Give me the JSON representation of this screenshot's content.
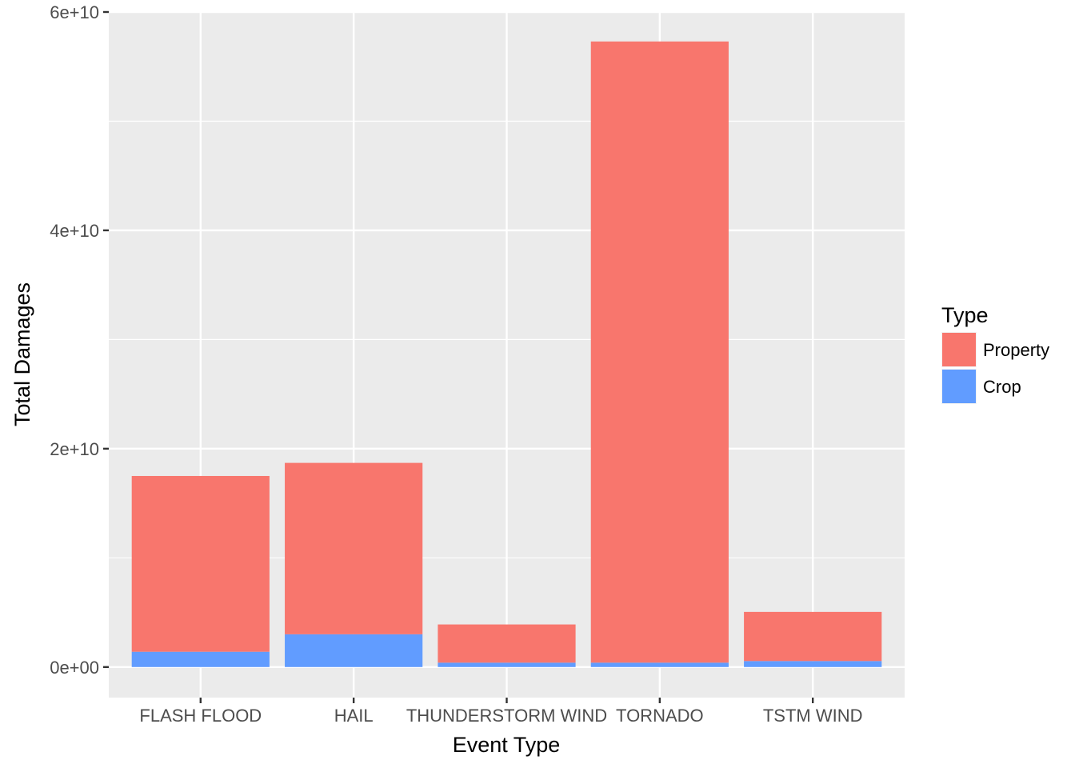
{
  "chart_data": {
    "type": "bar",
    "stacked": true,
    "categories": [
      "FLASH FLOOD",
      "HAIL",
      "THUNDERSTORM WIND",
      "TORNADO",
      "TSTM WIND"
    ],
    "series": [
      {
        "name": "Property",
        "color": "#F8766D",
        "values": [
          16100000000,
          15700000000,
          3500000000,
          56900000000,
          4500000000
        ]
      },
      {
        "name": "Crop",
        "color": "#619CFF",
        "values": [
          1400000000,
          3000000000,
          400000000,
          400000000,
          550000000
        ]
      }
    ],
    "xlabel": "Event Type",
    "ylabel": "Total Damages",
    "ylim": [
      -2800000000,
      60000000000
    ],
    "y_ticks": [
      0,
      20000000000,
      40000000000,
      60000000000
    ],
    "y_tick_labels": [
      "0e+00",
      "2e+10",
      "4e+10",
      "6e+10"
    ],
    "grid": true,
    "panel_background": "#EBEBEB",
    "grid_color": "#FFFFFF",
    "legend": {
      "title": "Type",
      "position": "right",
      "entries": [
        "Property",
        "Crop"
      ]
    }
  }
}
